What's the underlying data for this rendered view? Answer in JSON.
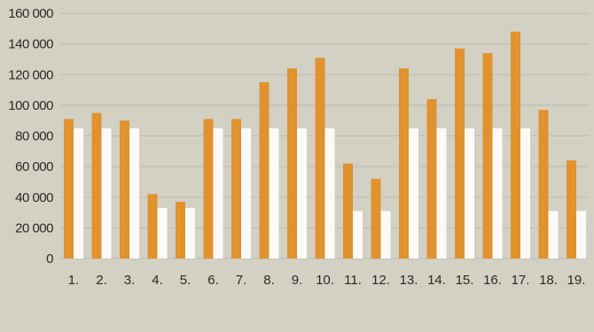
{
  "colors": {
    "background": "#d3d0c4",
    "gridline": "#bdbbb1",
    "series_a": "#e0922e",
    "series_b": "#fbfaf6",
    "text": "#2d2a26"
  },
  "chart_data": {
    "type": "bar",
    "categories": [
      "1.",
      "2.",
      "3.",
      "4.",
      "5.",
      "6.",
      "7.",
      "8.",
      "9.",
      "10.",
      "11.",
      "12.",
      "13.",
      "14.",
      "15.",
      "16.",
      "17.",
      "18.",
      "19."
    ],
    "series": [
      {
        "values": [
          91000,
          95000,
          90000,
          42000,
          37000,
          91000,
          91000,
          115000,
          124000,
          131000,
          62000,
          52000,
          124000,
          104000,
          137000,
          134000,
          148000,
          97000,
          64000
        ]
      },
      {
        "values": [
          85000,
          85000,
          85000,
          33000,
          33000,
          85000,
          85000,
          85000,
          85000,
          85000,
          31000,
          31000,
          85000,
          85000,
          85000,
          85000,
          85000,
          31000,
          31000
        ]
      }
    ],
    "ylim": [
      0,
      160000
    ],
    "yticks": [
      0,
      20000,
      40000,
      60000,
      80000,
      100000,
      120000,
      140000,
      160000
    ],
    "ytick_labels": [
      "0",
      "20 000",
      "40 000",
      "60 000",
      "80 000",
      "100 000",
      "120 000",
      "140 000",
      "160 000"
    ],
    "grid": true,
    "title": "",
    "xlabel": "",
    "ylabel": ""
  }
}
